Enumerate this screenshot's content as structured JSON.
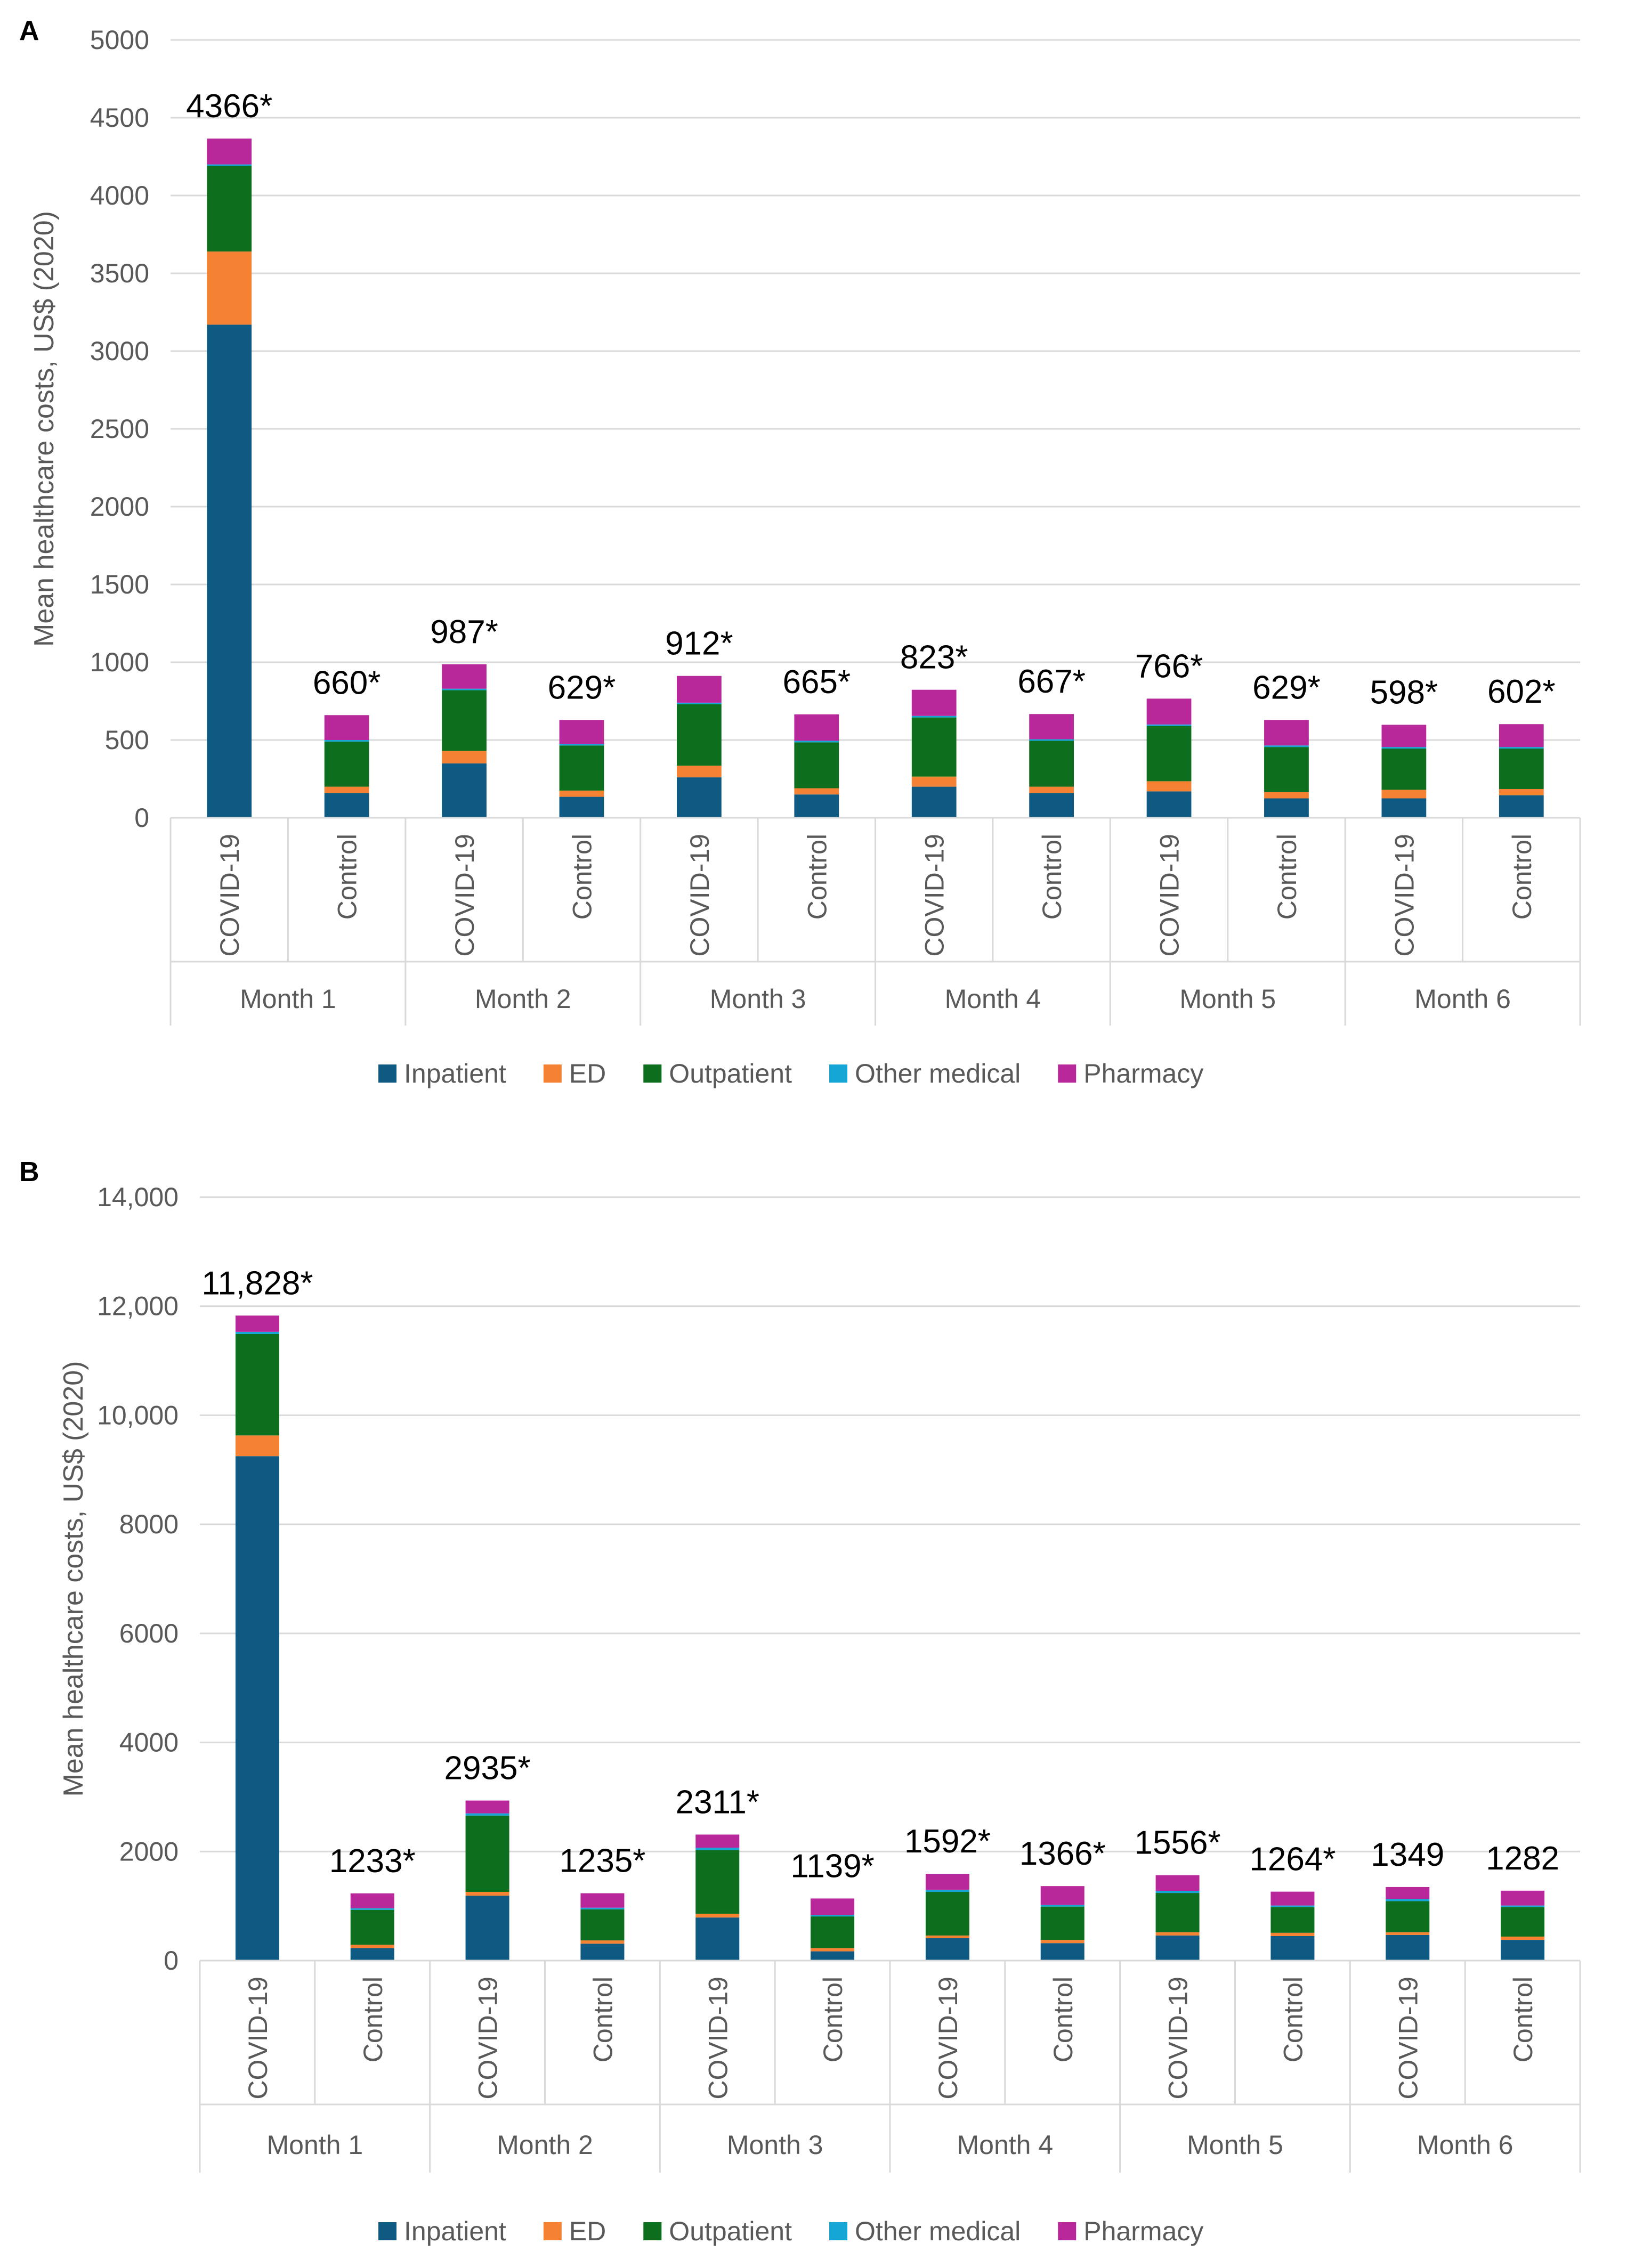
{
  "chart_data": [
    {
      "type": "bar",
      "stacked": true,
      "panel_label": "A",
      "title": "",
      "ylabel": "Mean healthcare costs, US$ (2020)",
      "ylim": [
        0,
        5000
      ],
      "yticks": [
        0,
        500,
        1000,
        1500,
        2000,
        2500,
        3000,
        3500,
        4000,
        4500,
        5000
      ],
      "ytick_labels": [
        "0",
        "500",
        "1000",
        "1500",
        "2000",
        "2500",
        "3000",
        "3500",
        "4000",
        "4500",
        "5000"
      ],
      "groups": [
        "Month 1",
        "Month 2",
        "Month 3",
        "Month 4",
        "Month 5",
        "Month 6"
      ],
      "categories": [
        "COVID-19",
        "Control",
        "COVID-19",
        "Control",
        "COVID-19",
        "Control",
        "COVID-19",
        "Control",
        "COVID-19",
        "Control",
        "COVID-19",
        "Control"
      ],
      "series": [
        {
          "name": "Inpatient",
          "color": "#0e5a82",
          "values": [
            3170,
            160,
            350,
            135,
            260,
            150,
            200,
            160,
            170,
            125,
            125,
            145
          ]
        },
        {
          "name": "ED",
          "color": "#f58232",
          "values": [
            470,
            40,
            80,
            40,
            75,
            40,
            65,
            40,
            65,
            40,
            55,
            40
          ]
        },
        {
          "name": "Outpatient",
          "color": "#0d6e1e",
          "values": [
            550,
            290,
            390,
            290,
            395,
            295,
            380,
            295,
            355,
            290,
            265,
            260
          ]
        },
        {
          "name": "Other medical",
          "color": "#15a6d6",
          "values": [
            10,
            10,
            10,
            10,
            10,
            10,
            10,
            10,
            10,
            10,
            10,
            10
          ]
        },
        {
          "name": "Pharmacy",
          "color": "#b8289b",
          "values": [
            166,
            160,
            157,
            154,
            172,
            170,
            168,
            162,
            166,
            164,
            143,
            147
          ]
        }
      ],
      "totals": [
        "4366*",
        "660*",
        "987*",
        "629*",
        "912*",
        "665*",
        "823*",
        "667*",
        "766*",
        "629*",
        "598*",
        "602*"
      ],
      "legend": {
        "position": "bottom"
      },
      "grid": true
    },
    {
      "type": "bar",
      "stacked": true,
      "panel_label": "B",
      "title": "",
      "ylabel": "Mean healthcare costs, US$ (2020)",
      "ylim": [
        0,
        14000
      ],
      "yticks": [
        0,
        2000,
        4000,
        6000,
        8000,
        10000,
        12000,
        14000
      ],
      "ytick_labels": [
        "0",
        "2000",
        "4000",
        "6000",
        "8000",
        "10,000",
        "12,000",
        "14,000"
      ],
      "groups": [
        "Month 1",
        "Month 2",
        "Month 3",
        "Month 4",
        "Month 5",
        "Month 6"
      ],
      "categories": [
        "COVID-19",
        "Control",
        "COVID-19",
        "Control",
        "COVID-19",
        "Control",
        "COVID-19",
        "Control",
        "COVID-19",
        "Control",
        "COVID-19",
        "Control"
      ],
      "series": [
        {
          "name": "Inpatient",
          "color": "#0e5a82",
          "values": [
            9250,
            230,
            1190,
            310,
            790,
            170,
            410,
            320,
            460,
            450,
            470,
            380
          ]
        },
        {
          "name": "ED",
          "color": "#f58232",
          "values": [
            380,
            60,
            70,
            60,
            70,
            60,
            50,
            60,
            60,
            60,
            50,
            60
          ]
        },
        {
          "name": "Outpatient",
          "color": "#0d6e1e",
          "values": [
            1860,
            640,
            1400,
            570,
            1170,
            580,
            800,
            610,
            720,
            470,
            570,
            540
          ]
        },
        {
          "name": "Other medical",
          "color": "#15a6d6",
          "values": [
            40,
            30,
            40,
            30,
            40,
            30,
            40,
            30,
            40,
            30,
            40,
            30
          ]
        },
        {
          "name": "Pharmacy",
          "color": "#b8289b",
          "values": [
            298,
            273,
            235,
            265,
            241,
            299,
            292,
            346,
            286,
            254,
            219,
            272
          ]
        }
      ],
      "totals": [
        "11,828*",
        "1233*",
        "2935*",
        "1235*",
        "2311*",
        "1139*",
        "1592*",
        "1366*",
        "1556*",
        "1264*",
        "1349",
        "1282"
      ],
      "legend": {
        "position": "bottom"
      },
      "grid": true
    }
  ]
}
